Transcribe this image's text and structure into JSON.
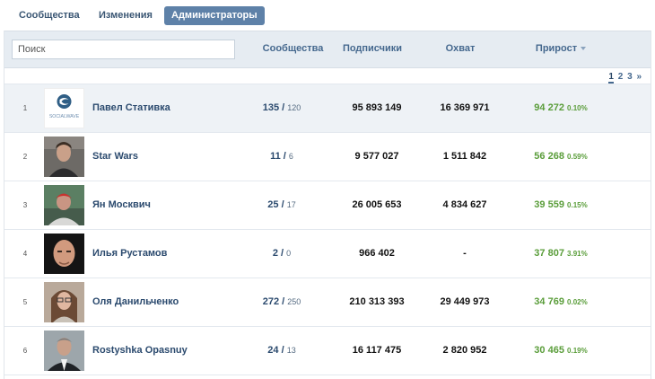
{
  "tabs": [
    {
      "label": "Сообщества"
    },
    {
      "label": "Изменения"
    },
    {
      "label": "Администраторы"
    }
  ],
  "search": {
    "placeholder": "Поиск"
  },
  "columns": {
    "communities": "Сообщества",
    "subscribers": "Подписчики",
    "reach": "Охват",
    "growth": "Прирост"
  },
  "pagination": {
    "pages": [
      "1",
      "2",
      "3"
    ],
    "next": "»",
    "current": "1"
  },
  "rows": [
    {
      "rank": "1",
      "name": "Павел Стативка",
      "communities": "135",
      "communities_sub": "120",
      "subscribers": "95 893 149",
      "reach": "16 369 971",
      "growth": "94 272",
      "growth_pct": "0.10%",
      "avatar": "socialwave-logo",
      "avatar_text": "SOCIALWAVE"
    },
    {
      "rank": "2",
      "name": "Star Wars",
      "communities": "11",
      "communities_sub": "6",
      "subscribers": "9 577 027",
      "reach": "1 511 842",
      "growth": "56 268",
      "growth_pct": "0.59%",
      "avatar": "person-photo"
    },
    {
      "rank": "3",
      "name": "Ян Москвич",
      "communities": "25",
      "communities_sub": "17",
      "subscribers": "26 005 653",
      "reach": "4 834 627",
      "growth": "39 559",
      "growth_pct": "0.15%",
      "avatar": "person-photo"
    },
    {
      "rank": "4",
      "name": "Илья Рустамов",
      "communities": "2",
      "communities_sub": "0",
      "subscribers": "966 402",
      "reach": "-",
      "growth": "37 807",
      "growth_pct": "3.91%",
      "avatar": "person-photo"
    },
    {
      "rank": "5",
      "name": "Оля Данильченко",
      "communities": "272",
      "communities_sub": "250",
      "subscribers": "210 313 393",
      "reach": "29 449 973",
      "growth": "34 769",
      "growth_pct": "0.02%",
      "avatar": "person-photo"
    },
    {
      "rank": "6",
      "name": "Rostyshka Opasnuy",
      "communities": "24",
      "communities_sub": "13",
      "subscribers": "16 117 475",
      "reach": "2 820 952",
      "growth": "30 465",
      "growth_pct": "0.19%",
      "avatar": "person-photo"
    }
  ],
  "colors": {
    "accent": "#5e81a8",
    "link": "#2b4a6e",
    "growth": "#5a9d3a",
    "header_bg": "#e6ecf2"
  }
}
